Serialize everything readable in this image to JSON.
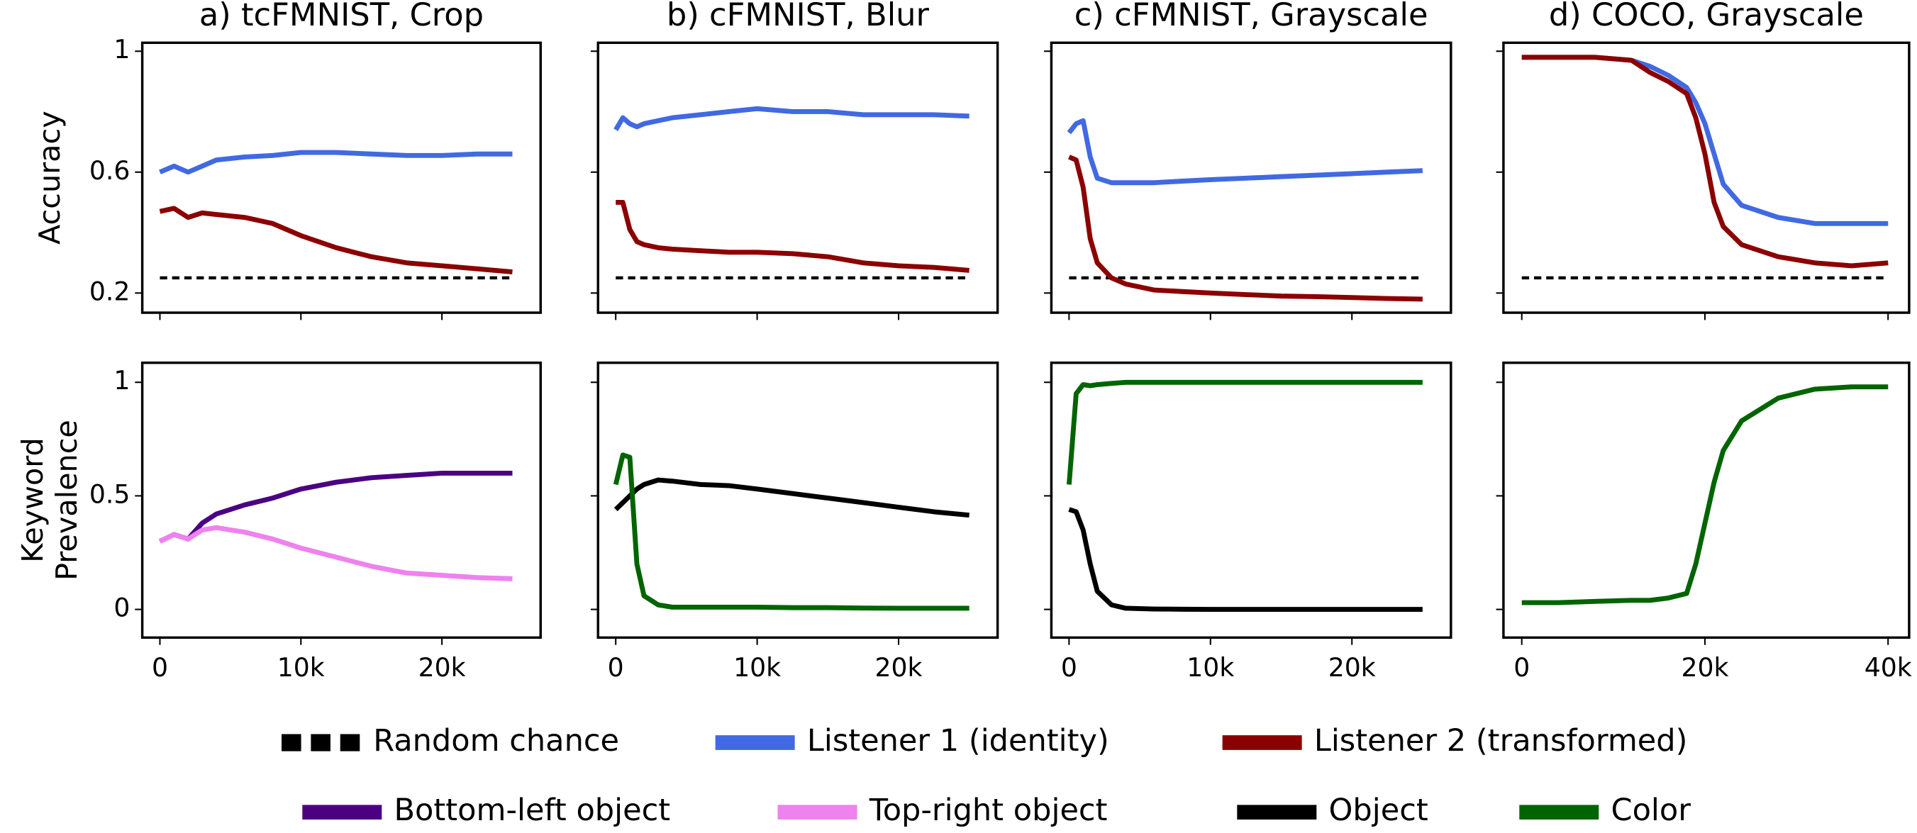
{
  "chart_data": [
    {
      "type": "line",
      "title": "a) tcFMNIST, Crop",
      "ylabel": [
        "Accuracy"
      ],
      "x": [
        0,
        1000,
        2000,
        3000,
        4000,
        6000,
        8000,
        10000,
        12500,
        15000,
        17500,
        20000,
        22500,
        25000
      ],
      "xlim": [
        -1250,
        27000
      ],
      "ylim": [
        0.135,
        1.028
      ],
      "yticks": [
        0.2,
        0.6,
        1
      ],
      "series": [
        {
          "color": "#000000",
          "dash": true,
          "values": [
            0.25,
            0.25,
            0.25,
            0.25,
            0.25,
            0.25,
            0.25,
            0.25,
            0.25,
            0.25,
            0.25,
            0.25,
            0.25,
            0.25
          ]
        },
        {
          "color": "#4169e1",
          "values": [
            0.6,
            0.62,
            0.6,
            0.62,
            0.64,
            0.65,
            0.655,
            0.665,
            0.665,
            0.66,
            0.655,
            0.655,
            0.66,
            0.66
          ]
        },
        {
          "color": "#8b0000",
          "values": [
            0.47,
            0.48,
            0.45,
            0.465,
            0.46,
            0.45,
            0.43,
            0.39,
            0.35,
            0.32,
            0.3,
            0.29,
            0.28,
            0.27
          ]
        }
      ]
    },
    {
      "type": "line",
      "title": "b) cFMNIST, Blur",
      "x": [
        0,
        500,
        1000,
        1500,
        2000,
        3000,
        4000,
        6000,
        8000,
        10000,
        12500,
        15000,
        17500,
        20000,
        22500,
        25000
      ],
      "xlim": [
        -1250,
        27000
      ],
      "ylim": [
        0.135,
        1.028
      ],
      "series": [
        {
          "color": "#000000",
          "dash": true,
          "values": [
            0.25,
            0.25,
            0.25,
            0.25,
            0.25,
            0.25,
            0.25,
            0.25,
            0.25,
            0.25,
            0.25,
            0.25,
            0.25,
            0.25,
            0.25,
            0.25
          ]
        },
        {
          "color": "#4169e1",
          "values": [
            0.74,
            0.78,
            0.76,
            0.75,
            0.76,
            0.77,
            0.78,
            0.79,
            0.8,
            0.81,
            0.8,
            0.8,
            0.79,
            0.79,
            0.79,
            0.785
          ]
        },
        {
          "color": "#8b0000",
          "values": [
            0.5,
            0.5,
            0.41,
            0.37,
            0.36,
            0.35,
            0.345,
            0.34,
            0.335,
            0.335,
            0.33,
            0.32,
            0.3,
            0.29,
            0.285,
            0.275
          ]
        }
      ]
    },
    {
      "type": "line",
      "title": "c) cFMNIST, Grayscale",
      "x": [
        0,
        500,
        1000,
        1500,
        2000,
        3000,
        4000,
        6000,
        8000,
        10000,
        12500,
        15000,
        17500,
        20000,
        22500,
        25000
      ],
      "xlim": [
        -1250,
        27000
      ],
      "ylim": [
        0.135,
        1.028
      ],
      "series": [
        {
          "color": "#000000",
          "dash": true,
          "values": [
            0.25,
            0.25,
            0.25,
            0.25,
            0.25,
            0.25,
            0.25,
            0.25,
            0.25,
            0.25,
            0.25,
            0.25,
            0.25,
            0.25,
            0.25,
            0.25
          ]
        },
        {
          "color": "#4169e1",
          "values": [
            0.73,
            0.76,
            0.77,
            0.65,
            0.58,
            0.565,
            0.565,
            0.565,
            0.57,
            0.575,
            0.58,
            0.585,
            0.59,
            0.595,
            0.6,
            0.605
          ]
        },
        {
          "color": "#8b0000",
          "values": [
            0.65,
            0.64,
            0.55,
            0.38,
            0.3,
            0.25,
            0.23,
            0.21,
            0.205,
            0.2,
            0.195,
            0.19,
            0.188,
            0.185,
            0.182,
            0.18
          ]
        }
      ]
    },
    {
      "type": "line",
      "title": "d) COCO, Grayscale",
      "x": [
        0,
        4000,
        8000,
        12000,
        14000,
        16000,
        18000,
        19000,
        20000,
        21000,
        22000,
        24000,
        28000,
        32000,
        36000,
        40000
      ],
      "xlim": [
        -2000,
        42300
      ],
      "ylim": [
        0.135,
        1.028
      ],
      "series": [
        {
          "color": "#000000",
          "dash": true,
          "values": [
            0.25,
            0.25,
            0.25,
            0.25,
            0.25,
            0.25,
            0.25,
            0.25,
            0.25,
            0.25,
            0.25,
            0.25,
            0.25,
            0.25,
            0.25,
            0.25
          ]
        },
        {
          "color": "#4169e1",
          "values": [
            0.98,
            0.98,
            0.98,
            0.97,
            0.95,
            0.92,
            0.88,
            0.83,
            0.76,
            0.66,
            0.56,
            0.49,
            0.45,
            0.43,
            0.43,
            0.43
          ]
        },
        {
          "color": "#8b0000",
          "values": [
            0.98,
            0.98,
            0.98,
            0.97,
            0.93,
            0.9,
            0.86,
            0.78,
            0.66,
            0.5,
            0.42,
            0.36,
            0.32,
            0.3,
            0.29,
            0.3
          ]
        }
      ]
    },
    {
      "type": "line",
      "ylabel": [
        "Keyword",
        "Prevalence"
      ],
      "x": [
        0,
        1000,
        2000,
        3000,
        4000,
        6000,
        8000,
        10000,
        12500,
        15000,
        17500,
        20000,
        22500,
        25000
      ],
      "xlim": [
        -1250,
        27000
      ],
      "ylim": [
        -0.124,
        1.086
      ],
      "yticks": [
        0,
        0.5,
        1
      ],
      "xticks": [
        0,
        {
          "value": 10000,
          "label": "10k"
        },
        {
          "value": 20000,
          "label": "20k"
        }
      ],
      "series": [
        {
          "color": "#4b0082",
          "values": [
            0.3,
            0.33,
            0.31,
            0.38,
            0.42,
            0.46,
            0.49,
            0.53,
            0.56,
            0.58,
            0.59,
            0.6,
            0.6,
            0.6
          ]
        },
        {
          "color": "#ee82ee",
          "values": [
            0.3,
            0.33,
            0.31,
            0.35,
            0.36,
            0.34,
            0.31,
            0.27,
            0.23,
            0.19,
            0.16,
            0.15,
            0.14,
            0.135
          ]
        }
      ]
    },
    {
      "type": "line",
      "x": [
        0,
        500,
        1000,
        1500,
        2000,
        3000,
        4000,
        6000,
        8000,
        10000,
        12500,
        15000,
        17500,
        20000,
        22500,
        25000
      ],
      "xlim": [
        -1250,
        27000
      ],
      "ylim": [
        -0.124,
        1.086
      ],
      "xticks": [
        0,
        {
          "value": 10000,
          "label": "10k"
        },
        {
          "value": 20000,
          "label": "20k"
        }
      ],
      "series": [
        {
          "color": "#000000",
          "values": [
            0.44,
            0.47,
            0.5,
            0.53,
            0.55,
            0.57,
            0.565,
            0.55,
            0.545,
            0.53,
            0.51,
            0.49,
            0.47,
            0.45,
            0.43,
            0.415
          ]
        },
        {
          "color": "#006400",
          "values": [
            0.55,
            0.68,
            0.67,
            0.2,
            0.06,
            0.02,
            0.01,
            0.01,
            0.01,
            0.01,
            0.008,
            0.008,
            0.006,
            0.005,
            0.005,
            0.005
          ]
        }
      ]
    },
    {
      "type": "line",
      "x": [
        0,
        500,
        1000,
        1500,
        2000,
        3000,
        4000,
        6000,
        8000,
        10000,
        12500,
        15000,
        17500,
        20000,
        22500,
        25000
      ],
      "xlim": [
        -1250,
        27000
      ],
      "ylim": [
        -0.124,
        1.086
      ],
      "xticks": [
        0,
        {
          "value": 10000,
          "label": "10k"
        },
        {
          "value": 20000,
          "label": "20k"
        }
      ],
      "series": [
        {
          "color": "#006400",
          "values": [
            0.55,
            0.95,
            0.99,
            0.985,
            0.99,
            0.995,
            1,
            1,
            1,
            1,
            1,
            1,
            1,
            1,
            1,
            1
          ]
        },
        {
          "color": "#000000",
          "values": [
            0.44,
            0.43,
            0.35,
            0.2,
            0.08,
            0.02,
            0.005,
            0.002,
            0.001,
            0,
            0,
            0,
            0,
            0,
            0,
            0
          ]
        }
      ]
    },
    {
      "type": "line",
      "x": [
        0,
        4000,
        8000,
        12000,
        14000,
        16000,
        18000,
        19000,
        20000,
        21000,
        22000,
        24000,
        28000,
        32000,
        36000,
        40000
      ],
      "xlim": [
        -2000,
        42300
      ],
      "ylim": [
        -0.124,
        1.086
      ],
      "xticks": [
        0,
        {
          "value": 20000,
          "label": "20k"
        },
        {
          "value": 40000,
          "label": "40k"
        }
      ],
      "series": [
        {
          "color": "#006400",
          "values": [
            0.03,
            0.03,
            0.035,
            0.04,
            0.04,
            0.05,
            0.07,
            0.2,
            0.38,
            0.56,
            0.7,
            0.83,
            0.93,
            0.97,
            0.98,
            0.98
          ]
        }
      ]
    }
  ],
  "legend": [
    {
      "name": "Random chance",
      "color": "#000000",
      "dash": true
    },
    {
      "name": "Listener 1 (identity)",
      "color": "#4169e1"
    },
    {
      "name": "Listener 2 (transformed)",
      "color": "#8b0000"
    },
    {
      "name": "Bottom-left object",
      "color": "#4b0082"
    },
    {
      "name": "Top-right object",
      "color": "#ee82ee"
    },
    {
      "name": "Object",
      "color": "#000000"
    },
    {
      "name": "Color",
      "color": "#006400"
    }
  ]
}
